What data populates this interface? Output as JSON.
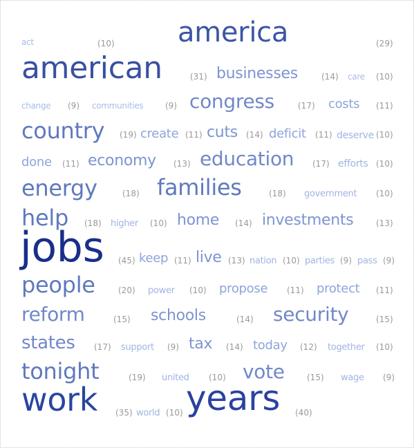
{
  "cloud": {
    "words": [
      {
        "word": "act",
        "count": "(10)",
        "size": 12,
        "color": "#a8bce6"
      },
      {
        "word": "america",
        "count": "(29)",
        "size": 40,
        "color": "#3b55a5"
      },
      {
        "word": "american",
        "count": "(31)",
        "size": 44,
        "color": "#3850a0"
      },
      {
        "word": "businesses",
        "count": "(14)",
        "size": 22,
        "color": "#7d94d2"
      },
      {
        "word": "care",
        "count": "(10)",
        "size": 12,
        "color": "#a8bce6"
      },
      {
        "word": "change",
        "count": "(9)",
        "size": 12,
        "color": "#a8bce6"
      },
      {
        "word": "communities",
        "count": "(9)",
        "size": 12,
        "color": "#a8bce6"
      },
      {
        "word": "congress",
        "count": "(17)",
        "size": 28,
        "color": "#7088c8"
      },
      {
        "word": "costs",
        "count": "(11)",
        "size": 18,
        "color": "#8ea4da"
      },
      {
        "word": "country",
        "count": "(19)",
        "size": 32,
        "color": "#5f79be"
      },
      {
        "word": "create",
        "count": "(11)",
        "size": 18,
        "color": "#8ea4da"
      },
      {
        "word": "cuts",
        "count": "(14)",
        "size": 22,
        "color": "#7d94d2"
      },
      {
        "word": "deficit",
        "count": "(11)",
        "size": 18,
        "color": "#8ea4da"
      },
      {
        "word": "deserve",
        "count": "(10)",
        "size": 14,
        "color": "#a0b4e2"
      },
      {
        "word": "done",
        "count": "(11)",
        "size": 18,
        "color": "#8ea4da"
      },
      {
        "word": "economy",
        "count": "(13)",
        "size": 22,
        "color": "#7d94d2"
      },
      {
        "word": "education",
        "count": "(17)",
        "size": 28,
        "color": "#7088c8"
      },
      {
        "word": "efforts",
        "count": "(10)",
        "size": 14,
        "color": "#a0b4e2"
      },
      {
        "word": "energy",
        "count": "(18)",
        "size": 32,
        "color": "#5f79be"
      },
      {
        "word": "families",
        "count": "(18)",
        "size": 32,
        "color": "#5f79be"
      },
      {
        "word": "government",
        "count": "(10)",
        "size": 13,
        "color": "#a0b4e2"
      },
      {
        "word": "help",
        "count": "(18)",
        "size": 32,
        "color": "#5f79be"
      },
      {
        "word": "higher",
        "count": "(10)",
        "size": 13,
        "color": "#a0b4e2"
      },
      {
        "word": "home",
        "count": "(14)",
        "size": 22,
        "color": "#7d94d2"
      },
      {
        "word": "investments",
        "count": "(13)",
        "size": 22,
        "color": "#7d94d2"
      },
      {
        "word": "jobs",
        "count": "(45)",
        "size": 60,
        "color": "#1a2e8a"
      },
      {
        "word": "keep",
        "count": "(11)",
        "size": 18,
        "color": "#8ea4da"
      },
      {
        "word": "live",
        "count": "(13)",
        "size": 22,
        "color": "#7d94d2"
      },
      {
        "word": "nation",
        "count": "(10)",
        "size": 13,
        "color": "#a0b4e2"
      },
      {
        "word": "parties",
        "count": "(9)",
        "size": 13,
        "color": "#a0b4e2"
      },
      {
        "word": "pass",
        "count": "(9)",
        "size": 13,
        "color": "#a0b4e2"
      },
      {
        "word": "people",
        "count": "(20)",
        "size": 32,
        "color": "#5f79be"
      },
      {
        "word": "power",
        "count": "(10)",
        "size": 13,
        "color": "#a0b4e2"
      },
      {
        "word": "propose",
        "count": "(11)",
        "size": 18,
        "color": "#8ea4da"
      },
      {
        "word": "protect",
        "count": "(11)",
        "size": 18,
        "color": "#8ea4da"
      },
      {
        "word": "reform",
        "count": "(15)",
        "size": 28,
        "color": "#7088c8"
      },
      {
        "word": "schools",
        "count": "(14)",
        "size": 22,
        "color": "#7d94d2"
      },
      {
        "word": "security",
        "count": "(15)",
        "size": 28,
        "color": "#7088c8"
      },
      {
        "word": "states",
        "count": "(17)",
        "size": 26,
        "color": "#7088c8"
      },
      {
        "word": "support",
        "count": "(9)",
        "size": 13,
        "color": "#a0b4e2"
      },
      {
        "word": "tax",
        "count": "(14)",
        "size": 22,
        "color": "#7d94d2"
      },
      {
        "word": "today",
        "count": "(12)",
        "size": 18,
        "color": "#8ea4da"
      },
      {
        "word": "together",
        "count": "(10)",
        "size": 13,
        "color": "#a0b4e2"
      },
      {
        "word": "tonight",
        "count": "(19)",
        "size": 32,
        "color": "#5f79be"
      },
      {
        "word": "united",
        "count": "(10)",
        "size": 13,
        "color": "#a0b4e2"
      },
      {
        "word": "vote",
        "count": "(15)",
        "size": 28,
        "color": "#7088c8"
      },
      {
        "word": "wage",
        "count": "(9)",
        "size": 13,
        "color": "#a0b4e2"
      },
      {
        "word": "work",
        "count": "(35)",
        "size": 46,
        "color": "#2a45a0"
      },
      {
        "word": "world",
        "count": "(10)",
        "size": 13,
        "color": "#a0b4e2"
      },
      {
        "word": "years",
        "count": "(40)",
        "size": 50,
        "color": "#2a42a0"
      }
    ]
  }
}
